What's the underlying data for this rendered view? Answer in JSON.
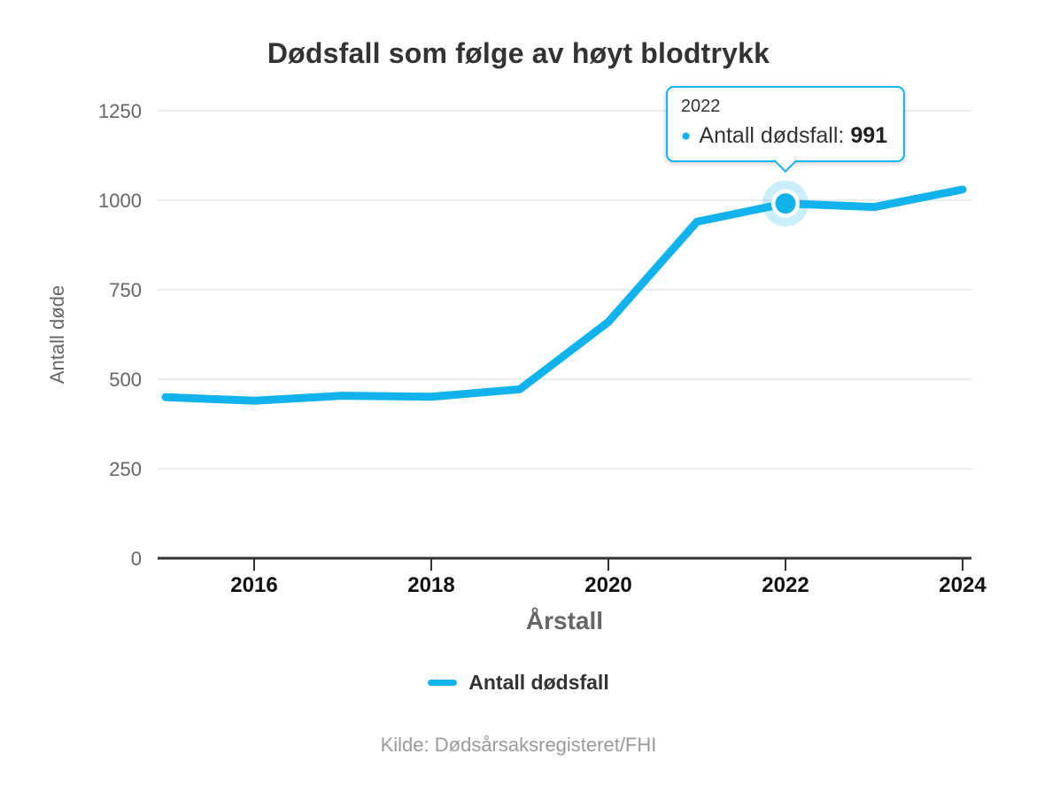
{
  "chart": {
    "title": "Dødsfall som følge av høyt blodtrykk"
  },
  "chart_data": {
    "type": "line",
    "title": "Dødsfall som følge av høyt blodtrykk",
    "xlabel": "Årstall",
    "ylabel": "Antall døde",
    "x": [
      2015,
      2016,
      2017,
      2018,
      2019,
      2020,
      2021,
      2022,
      2023,
      2024
    ],
    "series": [
      {
        "name": "Antall dødsfall",
        "values": [
          450,
          440,
          454,
          451,
          472,
          660,
          940,
          991,
          981,
          1030
        ]
      }
    ],
    "ylim": [
      0,
      1250
    ],
    "yticks": [
      0,
      250,
      500,
      750,
      1000,
      1250
    ],
    "xticks": [
      2016,
      2018,
      2020,
      2022,
      2024
    ],
    "grid": "horizontal",
    "legend_position": "bottom",
    "highlight": {
      "x": 2022,
      "value": 991
    }
  },
  "tooltip": {
    "header": "2022",
    "series_label": "Antall dødsfall:",
    "value": "991"
  },
  "legend": {
    "label": "Antall dødsfall"
  },
  "source": {
    "text": "Kilde: Dødsårsaksregisteret/FHI"
  },
  "colors": {
    "accent": "#12b2ec",
    "halo": "rgba(18, 178, 236, 0.22)",
    "grid": "#e6e6e6",
    "axis": "#333333",
    "y_tick_label": "#666666",
    "x_tick_label": "#111111",
    "axis_title": "#666666",
    "title": "#333333",
    "source": "#9a9a9a",
    "tooltip_bg": "#ffffff"
  }
}
